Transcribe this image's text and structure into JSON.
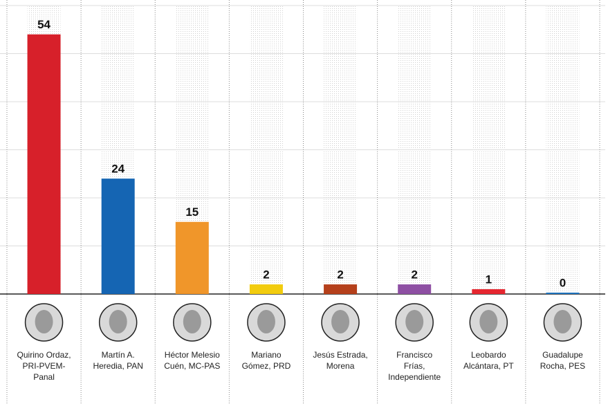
{
  "chart_data": {
    "type": "bar",
    "categories": [
      "Quirino Ordaz,\nPRI-PVEM-\nPanal",
      "Martín A.\nHeredia, PAN",
      "Héctor Melesio\nCuén, MC-PAS",
      "Mariano\nGómez, PRD",
      "Jesús Estrada,\nMorena",
      "Francisco\nFrías,\nIndependiente",
      "Leobardo\nAlcántara, PT",
      "Guadalupe\nRocha, PES"
    ],
    "values": [
      54,
      24,
      15,
      2,
      2,
      2,
      1,
      0
    ],
    "colors": [
      "#d7202a",
      "#1565b3",
      "#f0962a",
      "#f2cc0e",
      "#b5401b",
      "#8e4fa3",
      "#e6262f",
      "#1e73be"
    ],
    "ylim": [
      0,
      60
    ],
    "yticks": [
      0,
      10,
      20,
      30,
      40,
      50,
      60
    ],
    "grid": true
  }
}
